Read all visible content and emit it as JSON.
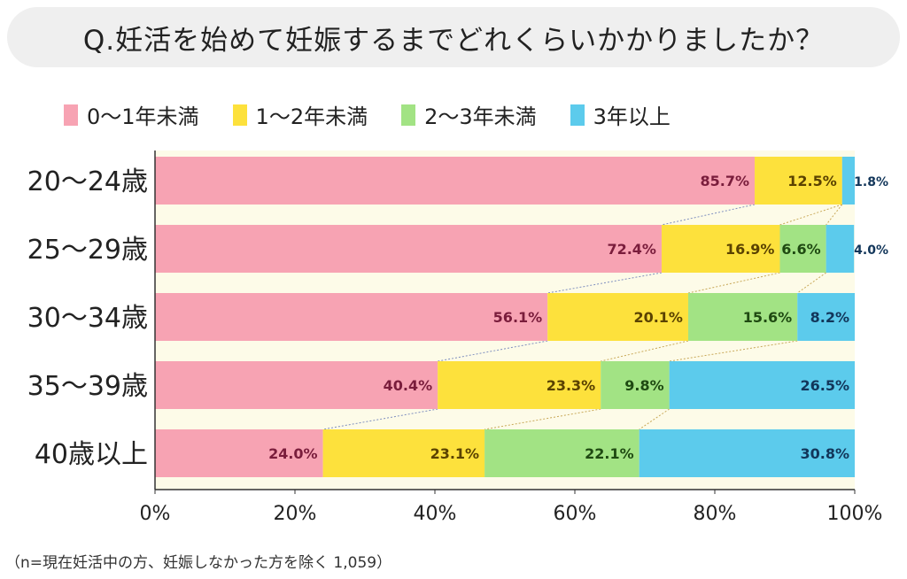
{
  "chart_data": {
    "type": "bar",
    "orientation": "horizontal",
    "stacked": true,
    "title": "Q.妊活を始めて妊娠するまでどれくらいかかりましたか？",
    "categories": [
      "20～24歳",
      "25～29歳",
      "30～34歳",
      "35～39歳",
      "40歳以上"
    ],
    "series": [
      {
        "name": "0～1年未満",
        "color": "#f7a3b3",
        "label_color": "#7a1d3c",
        "values": [
          85.7,
          72.4,
          56.1,
          40.4,
          24.0
        ]
      },
      {
        "name": "1～2年未満",
        "color": "#fde13c",
        "label_color": "#5a4200",
        "values": [
          12.5,
          16.9,
          20.1,
          23.3,
          23.1
        ]
      },
      {
        "name": "2～3年未満",
        "color": "#a2e384",
        "label_color": "#1f4a12",
        "values": [
          0,
          6.6,
          15.6,
          9.8,
          22.1
        ]
      },
      {
        "name": "3年以上",
        "color": "#5ccbec",
        "label_color": "#12365a",
        "values": [
          1.8,
          4.0,
          8.2,
          26.5,
          30.8
        ]
      }
    ],
    "xlim": [
      0,
      100
    ],
    "xticks": [
      "0%",
      "20%",
      "40%",
      "60%",
      "80%",
      "100%"
    ],
    "legend": "top",
    "grid": false,
    "footnote": "（n=現在妊活中の方、妊娠しなかった方を除く 1,059）"
  }
}
